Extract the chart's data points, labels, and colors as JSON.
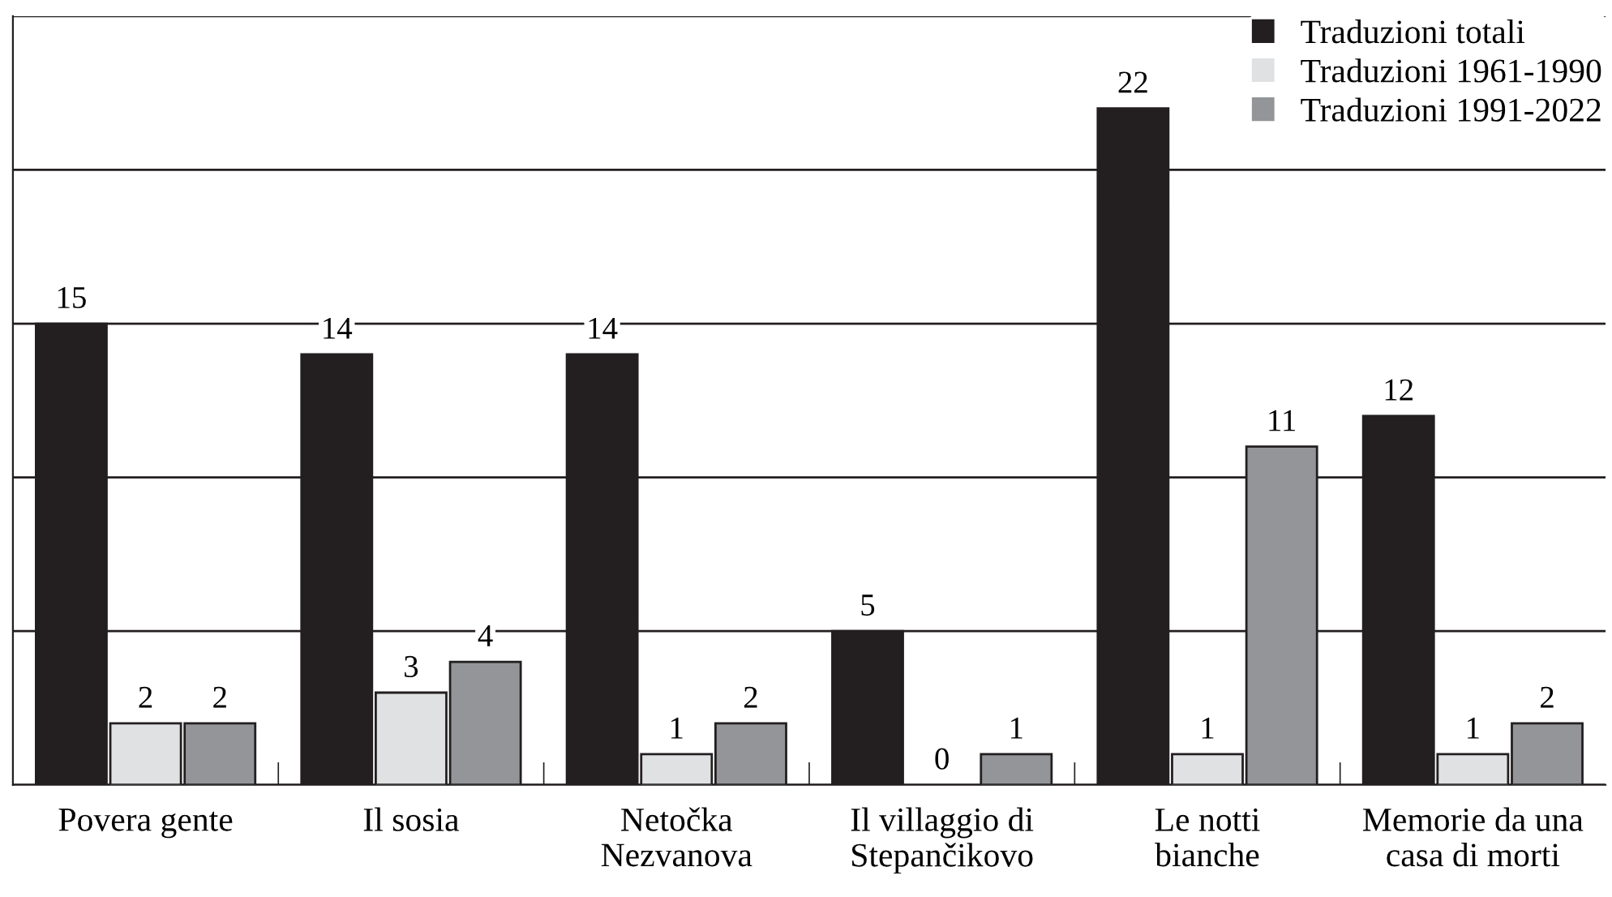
{
  "chart_data": {
    "type": "bar",
    "categories": [
      "Povera gente",
      "Il sosia",
      "Netočka\nNezvanova",
      "Il villaggio di\nStepančikovo",
      "Le notti\nbianche",
      "Memorie da una\ncasa di morti"
    ],
    "series": [
      {
        "name": "Traduzioni totali",
        "color": "#231f20",
        "values": [
          15,
          14,
          14,
          5,
          22,
          12
        ]
      },
      {
        "name": "Traduzioni 1961-1990",
        "color": "#e0e1e3",
        "values": [
          2,
          3,
          1,
          0,
          1,
          1
        ]
      },
      {
        "name": "Traduzioni 1991-2022",
        "color": "#939598",
        "values": [
          2,
          4,
          2,
          1,
          11,
          2
        ]
      }
    ],
    "ylim": [
      0,
      25
    ],
    "yticks": [
      {
        "value": 0,
        "label": null
      },
      {
        "value": 5,
        "label": null
      },
      {
        "value": 10,
        "label": null
      },
      {
        "value": 15,
        "label": null
      },
      {
        "value": 20,
        "label": null
      },
      {
        "value": 25,
        "label": null
      }
    ],
    "grid": "y",
    "legend": "top right",
    "data_labels": true
  }
}
